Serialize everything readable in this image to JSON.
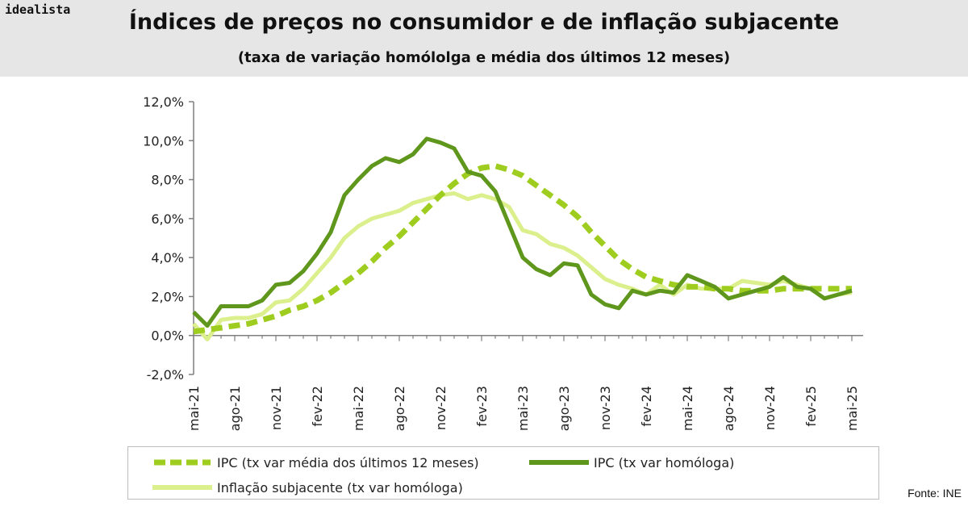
{
  "header": {
    "brand": "idealista",
    "title": "Índices de preços no consumidor e de inflação subjacente",
    "subtitle": "(taxa de variação homólolga e média dos últimos 12 meses)"
  },
  "source": "Fonte: INE",
  "colors": {
    "ipc_media": "#9fcd1f",
    "ipc": "#5f961c",
    "subjacente": "#dbef8c",
    "axis": "#7f7f7f"
  },
  "chart_data": {
    "type": "line",
    "title": "Índices de preços no consumidor e de inflação subjacente",
    "xlabel": "",
    "ylabel": "",
    "ylim": [
      -2,
      12
    ],
    "yticks": [
      -2,
      0,
      2,
      4,
      6,
      8,
      10,
      12
    ],
    "ytick_labels": [
      "-2,0%",
      "0,0%",
      "2,0%",
      "4,0%",
      "6,0%",
      "8,0%",
      "10,0%",
      "12,0%"
    ],
    "grid": false,
    "x": [
      "mai-21",
      "jun-21",
      "jul-21",
      "ago-21",
      "set-21",
      "out-21",
      "nov-21",
      "dez-21",
      "jan-22",
      "fev-22",
      "mar-22",
      "abr-22",
      "mai-22",
      "jun-22",
      "jul-22",
      "ago-22",
      "set-22",
      "out-22",
      "nov-22",
      "dez-22",
      "jan-23",
      "fev-23",
      "mar-23",
      "abr-23",
      "mai-23",
      "jun-23",
      "jul-23",
      "ago-23",
      "set-23",
      "out-23",
      "nov-23",
      "dez-23",
      "jan-24",
      "fev-24",
      "mar-24",
      "abr-24",
      "mai-24",
      "jun-24",
      "jul-24",
      "ago-24",
      "set-24",
      "out-24",
      "nov-24",
      "dez-24",
      "jan-25",
      "fev-25",
      "mar-25",
      "abr-25",
      "mai-25"
    ],
    "xtick_labels": [
      "mai-21",
      "ago-21",
      "nov-21",
      "fev-22",
      "mai-22",
      "ago-22",
      "nov-22",
      "fev-23",
      "mai-23",
      "ago-23",
      "nov-23",
      "fev-24",
      "mai-24",
      "ago-24",
      "nov-24",
      "fev-25",
      "mai-25"
    ],
    "legend_position": "bottom",
    "series": [
      {
        "name": "IPC (tx var média dos últimos 12 meses)",
        "style": "dashed",
        "values": [
          0.2,
          0.3,
          0.4,
          0.5,
          0.6,
          0.8,
          1.0,
          1.3,
          1.5,
          1.8,
          2.2,
          2.7,
          3.2,
          3.8,
          4.5,
          5.1,
          5.8,
          6.5,
          7.2,
          7.8,
          8.3,
          8.6,
          8.7,
          8.5,
          8.2,
          7.7,
          7.2,
          6.7,
          6.1,
          5.3,
          4.6,
          3.9,
          3.4,
          3.0,
          2.8,
          2.6,
          2.5,
          2.5,
          2.4,
          2.4,
          2.3,
          2.3,
          2.3,
          2.4,
          2.4,
          2.4,
          2.4,
          2.4,
          2.4
        ]
      },
      {
        "name": "IPC (tx var homóloga)",
        "style": "solid",
        "values": [
          1.2,
          0.5,
          1.5,
          1.5,
          1.5,
          1.8,
          2.6,
          2.7,
          3.3,
          4.2,
          5.3,
          7.2,
          8.0,
          8.7,
          9.1,
          8.9,
          9.3,
          10.1,
          9.9,
          9.6,
          8.4,
          8.2,
          7.4,
          5.7,
          4.0,
          3.4,
          3.1,
          3.7,
          3.6,
          2.1,
          1.6,
          1.4,
          2.3,
          2.1,
          2.3,
          2.2,
          3.1,
          2.8,
          2.5,
          1.9,
          2.1,
          2.3,
          2.5,
          3.0,
          2.5,
          2.4,
          1.9,
          2.1,
          2.3
        ]
      },
      {
        "name": "Inflação subjacente (tx var homóloga)",
        "style": "solid",
        "values": [
          0.6,
          -0.2,
          0.8,
          0.9,
          0.9,
          1.1,
          1.7,
          1.8,
          2.4,
          3.2,
          4.0,
          5.0,
          5.6,
          6.0,
          6.2,
          6.4,
          6.8,
          7.0,
          7.2,
          7.3,
          7.0,
          7.2,
          7.0,
          6.6,
          5.4,
          5.2,
          4.7,
          4.5,
          4.1,
          3.5,
          2.9,
          2.6,
          2.4,
          2.1,
          2.6,
          2.1,
          2.6,
          2.4,
          2.4,
          2.4,
          2.8,
          2.7,
          2.6,
          2.8,
          2.6,
          2.4,
          1.9,
          2.1,
          2.2
        ]
      }
    ]
  }
}
